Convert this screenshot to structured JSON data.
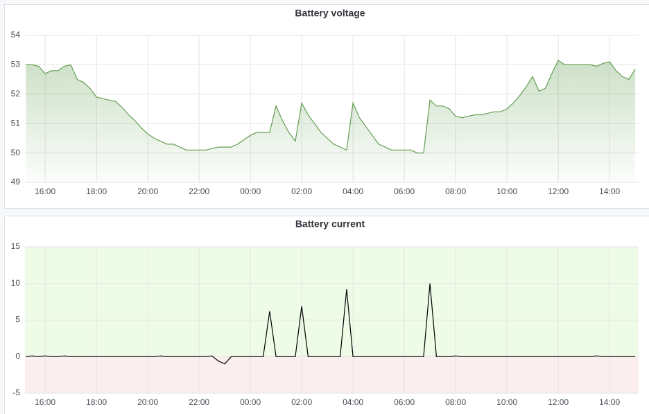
{
  "chart_data": [
    {
      "type": "line",
      "title": "Battery voltage",
      "color": "#629e51",
      "fill": true,
      "x": [
        "15:15",
        "15:30",
        "15:45",
        "16:00",
        "16:15",
        "16:30",
        "16:45",
        "17:00",
        "17:15",
        "17:30",
        "17:45",
        "18:00",
        "18:15",
        "18:30",
        "18:45",
        "19:00",
        "19:15",
        "19:30",
        "19:45",
        "20:00",
        "20:15",
        "20:30",
        "20:45",
        "21:00",
        "21:15",
        "21:30",
        "21:45",
        "22:00",
        "22:15",
        "22:30",
        "22:45",
        "23:00",
        "23:15",
        "23:30",
        "23:45",
        "00:00",
        "00:15",
        "00:30",
        "00:45",
        "01:00",
        "01:15",
        "01:30",
        "01:45",
        "02:00",
        "02:15",
        "02:30",
        "02:45",
        "03:00",
        "03:15",
        "03:30",
        "03:45",
        "04:00",
        "04:15",
        "04:30",
        "04:45",
        "05:00",
        "05:15",
        "05:30",
        "05:45",
        "06:00",
        "06:15",
        "06:30",
        "06:45",
        "07:00",
        "07:15",
        "07:30",
        "07:45",
        "08:00",
        "08:15",
        "08:30",
        "08:45",
        "09:00",
        "09:15",
        "09:30",
        "09:45",
        "10:00",
        "10:15",
        "10:30",
        "10:45",
        "11:00",
        "11:15",
        "11:30",
        "11:45",
        "12:00",
        "12:15",
        "12:30",
        "12:45",
        "13:00",
        "13:15",
        "13:30",
        "13:45",
        "14:00",
        "14:15",
        "14:30",
        "14:45",
        "15:00"
      ],
      "values": [
        53.0,
        53.0,
        52.95,
        52.7,
        52.8,
        52.8,
        52.95,
        53.0,
        52.5,
        52.4,
        52.2,
        51.9,
        51.85,
        51.8,
        51.75,
        51.55,
        51.3,
        51.1,
        50.85,
        50.65,
        50.5,
        50.4,
        50.3,
        50.3,
        50.2,
        50.1,
        50.1,
        50.1,
        50.1,
        50.15,
        50.2,
        50.2,
        50.2,
        50.3,
        50.45,
        50.6,
        50.7,
        50.7,
        50.7,
        51.6,
        51.1,
        50.7,
        50.4,
        51.7,
        51.3,
        51.0,
        50.7,
        50.5,
        50.3,
        50.2,
        50.1,
        51.7,
        51.2,
        50.9,
        50.6,
        50.3,
        50.2,
        50.1,
        50.1,
        50.1,
        50.1,
        50.0,
        50.0,
        51.8,
        51.6,
        51.6,
        51.5,
        51.25,
        51.2,
        51.25,
        51.3,
        51.3,
        51.35,
        51.4,
        51.4,
        51.5,
        51.7,
        51.95,
        52.25,
        52.6,
        52.1,
        52.2,
        52.7,
        53.15,
        53.0,
        53.0,
        53.0,
        53.0,
        53.0,
        52.95,
        53.05,
        53.1,
        52.8,
        52.6,
        52.5,
        52.85
      ],
      "xticks": [
        "16:00",
        "18:00",
        "20:00",
        "22:00",
        "00:00",
        "02:00",
        "04:00",
        "06:00",
        "08:00",
        "10:00",
        "12:00",
        "14:00"
      ],
      "ylim": [
        49,
        54
      ],
      "yticks": [
        49,
        50,
        51,
        52,
        53,
        54
      ],
      "grid": true
    },
    {
      "type": "line",
      "title": "Battery current",
      "color": "#000000",
      "fill": false,
      "threshold": 0,
      "above_color": "#eefbe6",
      "below_color": "#fbeeee",
      "x": [
        "15:15",
        "15:30",
        "15:45",
        "16:00",
        "16:15",
        "16:30",
        "16:45",
        "17:00",
        "17:15",
        "17:30",
        "17:45",
        "18:00",
        "18:15",
        "18:30",
        "18:45",
        "19:00",
        "19:15",
        "19:30",
        "19:45",
        "20:00",
        "20:15",
        "20:30",
        "20:45",
        "21:00",
        "21:15",
        "21:30",
        "21:45",
        "22:00",
        "22:15",
        "22:30",
        "22:45",
        "23:00",
        "23:15",
        "23:30",
        "23:45",
        "00:00",
        "00:15",
        "00:30",
        "00:45",
        "01:00",
        "01:15",
        "01:30",
        "01:45",
        "02:00",
        "02:15",
        "02:30",
        "02:45",
        "03:00",
        "03:15",
        "03:30",
        "03:45",
        "04:00",
        "04:15",
        "04:30",
        "04:45",
        "05:00",
        "05:15",
        "05:30",
        "05:45",
        "06:00",
        "06:15",
        "06:30",
        "06:45",
        "07:00",
        "07:15",
        "07:30",
        "07:45",
        "08:00",
        "08:15",
        "08:30",
        "08:45",
        "09:00",
        "09:15",
        "09:30",
        "09:45",
        "10:00",
        "10:15",
        "10:30",
        "10:45",
        "11:00",
        "11:15",
        "11:30",
        "11:45",
        "12:00",
        "12:15",
        "12:30",
        "12:45",
        "13:00",
        "13:15",
        "13:30",
        "13:45",
        "14:00",
        "14:15",
        "14:30",
        "14:45",
        "15:00"
      ],
      "values": [
        0,
        0.1,
        0,
        0.1,
        0,
        0,
        0.1,
        0,
        0,
        0,
        0,
        0,
        0,
        0,
        0,
        0,
        0,
        0,
        0,
        0,
        0,
        0.1,
        0,
        0,
        0,
        0,
        0,
        0,
        0,
        0.1,
        -0.6,
        -1.0,
        0,
        0,
        0,
        0,
        0,
        0,
        6.2,
        0,
        0,
        0,
        0,
        6.9,
        0,
        0,
        0,
        0,
        0,
        0,
        9.2,
        0,
        0,
        0,
        0,
        0,
        0,
        0,
        0,
        0,
        0,
        0,
        0,
        10.0,
        0,
        0,
        0,
        0.1,
        0,
        0,
        0,
        0,
        0,
        0,
        0,
        0,
        0,
        0,
        0,
        0,
        0,
        0,
        0,
        0,
        0,
        0,
        0,
        0,
        0,
        0.1,
        0,
        0,
        0,
        0,
        0,
        0
      ],
      "xticks": [
        "16:00",
        "18:00",
        "20:00",
        "22:00",
        "00:00",
        "02:00",
        "04:00",
        "06:00",
        "08:00",
        "10:00",
        "12:00",
        "14:00"
      ],
      "ylim": [
        -5,
        15
      ],
      "yticks": [
        -5,
        0,
        5,
        10,
        15
      ],
      "grid": true
    }
  ]
}
